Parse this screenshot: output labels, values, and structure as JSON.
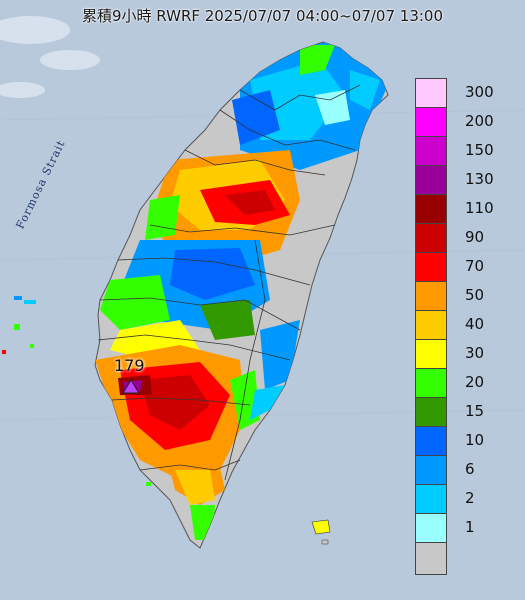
{
  "title": "累積9小時 RWRF 2025/07/07 04:00~07/07 13:00",
  "sea_label": "Formosa Strait",
  "max_marker": {
    "label": "179",
    "color": "#c040ff"
  },
  "colors": {
    "sea": "#b9c9dc",
    "land_background": "#d4d8dc",
    "no_rain": "#c8c8c8",
    "boundary": "#333333"
  },
  "legend": [
    {
      "label": "300",
      "color": "#ffc8ff"
    },
    {
      "label": "200",
      "color": "#ff00ff"
    },
    {
      "label": "150",
      "color": "#cc00cc"
    },
    {
      "label": "130",
      "color": "#990099"
    },
    {
      "label": "110",
      "color": "#990000"
    },
    {
      "label": "90",
      "color": "#cc0000"
    },
    {
      "label": "70",
      "color": "#ff0000"
    },
    {
      "label": "50",
      "color": "#ff9900"
    },
    {
      "label": "40",
      "color": "#ffcc00"
    },
    {
      "label": "30",
      "color": "#ffff00"
    },
    {
      "label": "20",
      "color": "#33ff00"
    },
    {
      "label": "15",
      "color": "#339900"
    },
    {
      "label": "10",
      "color": "#0066ff"
    },
    {
      "label": "6",
      "color": "#0099ff"
    },
    {
      "label": "2",
      "color": "#00ccff"
    },
    {
      "label": "1",
      "color": "#99ffff"
    },
    {
      "label": "",
      "color": "#c8c8c8"
    }
  ]
}
